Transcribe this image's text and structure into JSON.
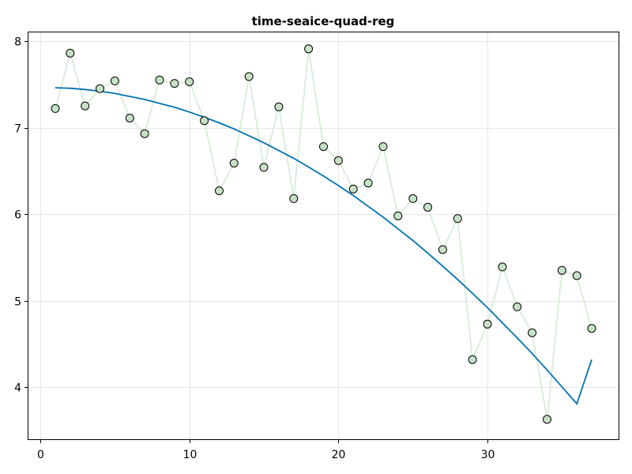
{
  "chart_data": {
    "type": "scatter",
    "title": "time-seaice-quad-reg",
    "xlabel": "",
    "ylabel": "",
    "xlim": [
      -0.8,
      38.8
    ],
    "ylim": [
      3.4,
      8.1
    ],
    "xticks": [
      0,
      10,
      20,
      30
    ],
    "yticks": [
      4,
      5,
      6,
      7,
      8
    ],
    "grid": true,
    "colors": {
      "observed_marker_fill": "#c6e1c6",
      "observed_marker_stroke": "#000000",
      "observed_line": "#d4ead4",
      "fit_line": "#0072b2"
    },
    "series": [
      {
        "kind": "scatter-line",
        "x": [
          1,
          2,
          3,
          4,
          5,
          6,
          7,
          8,
          9,
          10,
          11,
          12,
          13,
          14,
          15,
          16,
          17,
          18,
          19,
          20,
          21,
          22,
          23,
          24,
          25,
          26,
          27,
          28,
          29,
          30,
          31,
          32,
          33,
          34,
          35,
          36,
          37
        ],
        "values": [
          7.22,
          7.86,
          7.25,
          7.45,
          7.54,
          7.11,
          6.93,
          7.55,
          7.51,
          7.53,
          7.08,
          6.27,
          6.59,
          7.59,
          6.54,
          7.24,
          6.18,
          7.91,
          6.78,
          6.62,
          6.29,
          6.36,
          6.78,
          5.98,
          6.18,
          6.08,
          5.59,
          5.95,
          4.32,
          4.73,
          5.39,
          4.93,
          4.63,
          3.63,
          5.35,
          5.29,
          4.68
        ]
      },
      {
        "kind": "line",
        "x": [
          1,
          2,
          3,
          4,
          5,
          6,
          7,
          8,
          9,
          10,
          11,
          12,
          13,
          14,
          15,
          16,
          17,
          18,
          19,
          20,
          21,
          22,
          23,
          24,
          25,
          26,
          27,
          28,
          29,
          30,
          31,
          32,
          33,
          34,
          35,
          36,
          37
        ],
        "values": [
          7.46,
          7.455,
          7.44,
          7.42,
          7.395,
          7.36,
          7.325,
          7.28,
          7.235,
          7.18,
          7.12,
          7.055,
          6.985,
          6.905,
          6.825,
          6.735,
          6.645,
          6.545,
          6.44,
          6.33,
          6.215,
          6.09,
          5.965,
          5.83,
          5.695,
          5.55,
          5.4,
          5.245,
          5.085,
          4.92,
          4.745,
          4.57,
          4.39,
          4.2,
          4.005,
          3.81,
          4.32
        ]
      }
    ]
  }
}
